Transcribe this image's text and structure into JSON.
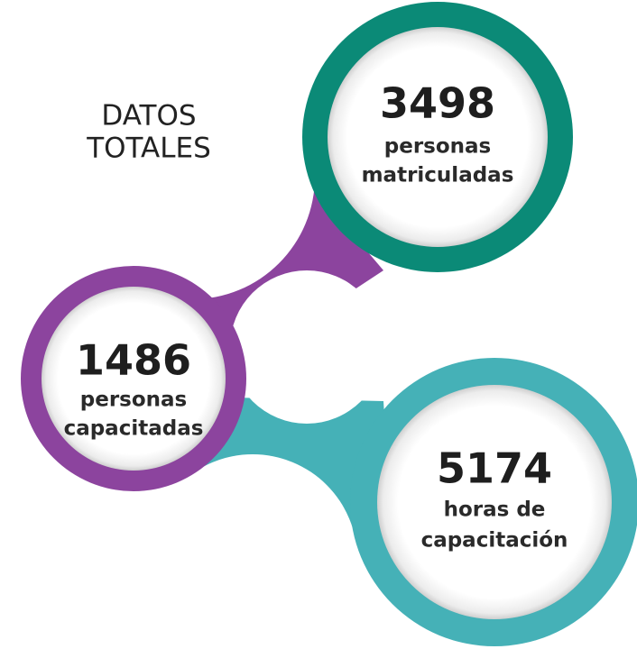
{
  "title": [
    "DATOS",
    "TOTALES"
  ],
  "nodes": [
    {
      "value": 3498,
      "label": [
        "personas",
        "matriculadas"
      ]
    },
    {
      "value": 1486,
      "label": [
        "personas",
        "capacitadas"
      ]
    },
    {
      "value": 5174,
      "label": [
        "horas de",
        "capacitación"
      ]
    }
  ]
}
